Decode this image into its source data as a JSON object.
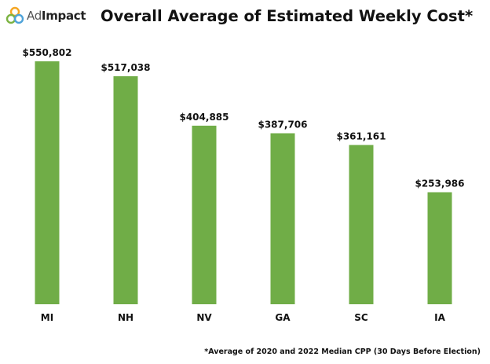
{
  "brand": {
    "ad": "Ad",
    "impact": "Impact"
  },
  "title": "Overall Average of Estimated Weekly Cost*",
  "footnote": "*Average of 2020 and 2022 Median CPP (30 Days Before Election)",
  "colors": {
    "bar": "#70ad47",
    "logo_orange": "#f5a623",
    "logo_green": "#7cb342",
    "logo_blue": "#4fa3d9"
  },
  "chart_data": {
    "type": "bar",
    "categories": [
      "MI",
      "NH",
      "NV",
      "GA",
      "SC",
      "IA"
    ],
    "values": [
      550802,
      517038,
      404885,
      387706,
      361161,
      253986
    ],
    "value_labels": [
      "$550,802",
      "$517,038",
      "$404,885",
      "$387,706",
      "$361,161",
      "$253,986"
    ],
    "title": "Overall Average of Estimated Weekly Cost*",
    "xlabel": "",
    "ylabel": "",
    "ylim": [
      0,
      550802
    ],
    "grid": false,
    "legend": "none"
  }
}
